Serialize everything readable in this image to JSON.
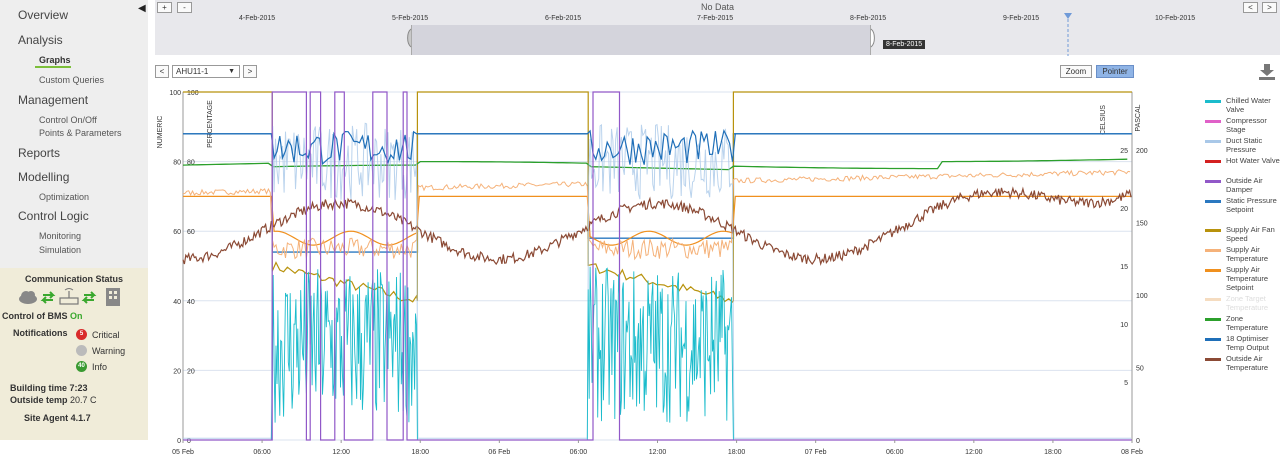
{
  "sidebar": {
    "collapse_icon": "◀",
    "sections": [
      {
        "label": "Overview"
      },
      {
        "label": "Analysis",
        "items": [
          {
            "label": "Graphs",
            "active": true
          },
          {
            "label": "Custom Queries"
          }
        ]
      },
      {
        "label": "Management",
        "items": [
          {
            "label": "Control On/Off"
          },
          {
            "label": "Points & Parameters"
          }
        ]
      },
      {
        "label": "Reports"
      },
      {
        "label": "Modelling",
        "items": [
          {
            "label": "Optimization"
          }
        ]
      },
      {
        "label": "Control Logic",
        "items": [
          {
            "label": "Monitoring"
          },
          {
            "label": "Simulation"
          }
        ]
      }
    ]
  },
  "status": {
    "title": "Communication Status",
    "control_label": "Control of BMS",
    "control_value": "On",
    "notifications_label": "Notifications",
    "critical": {
      "count": "5",
      "label": "Critical",
      "color": "#d92b2b"
    },
    "warning": {
      "label": "Warning",
      "color": "#bbbbbb"
    },
    "info": {
      "count": "40",
      "label": "Info",
      "color": "#3a9a32"
    },
    "building_time_label": "Building time",
    "building_time": "7:23",
    "outside_temp_label": "Outside temp",
    "outside_temp": "20.7 C",
    "site_agent": "Site Agent 4.1.7"
  },
  "timeline": {
    "no_data": "No Data",
    "zoom_in": "+",
    "zoom_out": "-",
    "prev": "<",
    "next": ">",
    "dates": [
      "4-Feb-2015",
      "5-Feb-2015",
      "6-Feb-2015",
      "7-Feb-2015",
      "8-Feb-2015",
      "9-Feb-2015",
      "10-Feb-2015"
    ],
    "selected_date": "8-Feb-2015"
  },
  "toolbar": {
    "prev": "<",
    "next": ">",
    "selected_unit": "AHU11-1",
    "zoom": "Zoom",
    "pointer": "Pointer",
    "download_icon": "download-icon"
  },
  "chart_data": {
    "type": "line",
    "x_ticks": [
      "05 Feb",
      "06:00",
      "12:00",
      "18:00",
      "06 Feb",
      "06:00",
      "12:00",
      "18:00",
      "07 Feb",
      "06:00",
      "12:00",
      "18:00",
      "08 Feb"
    ],
    "axes": [
      {
        "label": "NUMERIC",
        "ticks": [
          "0",
          "20",
          "40",
          "60",
          "80",
          "100"
        ]
      },
      {
        "label": "PERCENTAGE",
        "ticks": [
          "0",
          "20",
          "40",
          "60",
          "80",
          "100"
        ]
      },
      {
        "label": "CELSIUS",
        "ticks": [
          "5",
          "10",
          "15",
          "20",
          "25"
        ]
      },
      {
        "label": "PASCAL",
        "ticks": [
          "0",
          "50",
          "100",
          "150",
          "200"
        ]
      }
    ],
    "series": [
      {
        "name": "Chilled Water Valve",
        "color": "#1bbccc"
      },
      {
        "name": "Compressor Stage",
        "color": "#e060c8"
      },
      {
        "name": "Duct Static Pressure",
        "color": "#a9c8e8"
      },
      {
        "name": "Hot Water Valve",
        "color": "#d42020"
      },
      {
        "name": "Outside Air Damper",
        "color": "#9158c8"
      },
      {
        "name": "Static Pressure Setpoint",
        "color": "#2a78c0"
      },
      {
        "name": "Supply Air Fan Speed",
        "color": "#b8920c"
      },
      {
        "name": "Supply Air Temperature",
        "color": "#f5b27a"
      },
      {
        "name": "Supply Air Temperature Setpoint",
        "color": "#f0901e"
      },
      {
        "name": "Zone Target Temperature",
        "color": "#f5dcc0",
        "faded": true
      },
      {
        "name": "Zone Temperature",
        "color": "#2ca02c"
      },
      {
        "name": "18 Optimiser Temp Output",
        "color": "#1f6fb8"
      },
      {
        "name": "Outside Air Temperature",
        "color": "#8b4a35"
      }
    ]
  }
}
